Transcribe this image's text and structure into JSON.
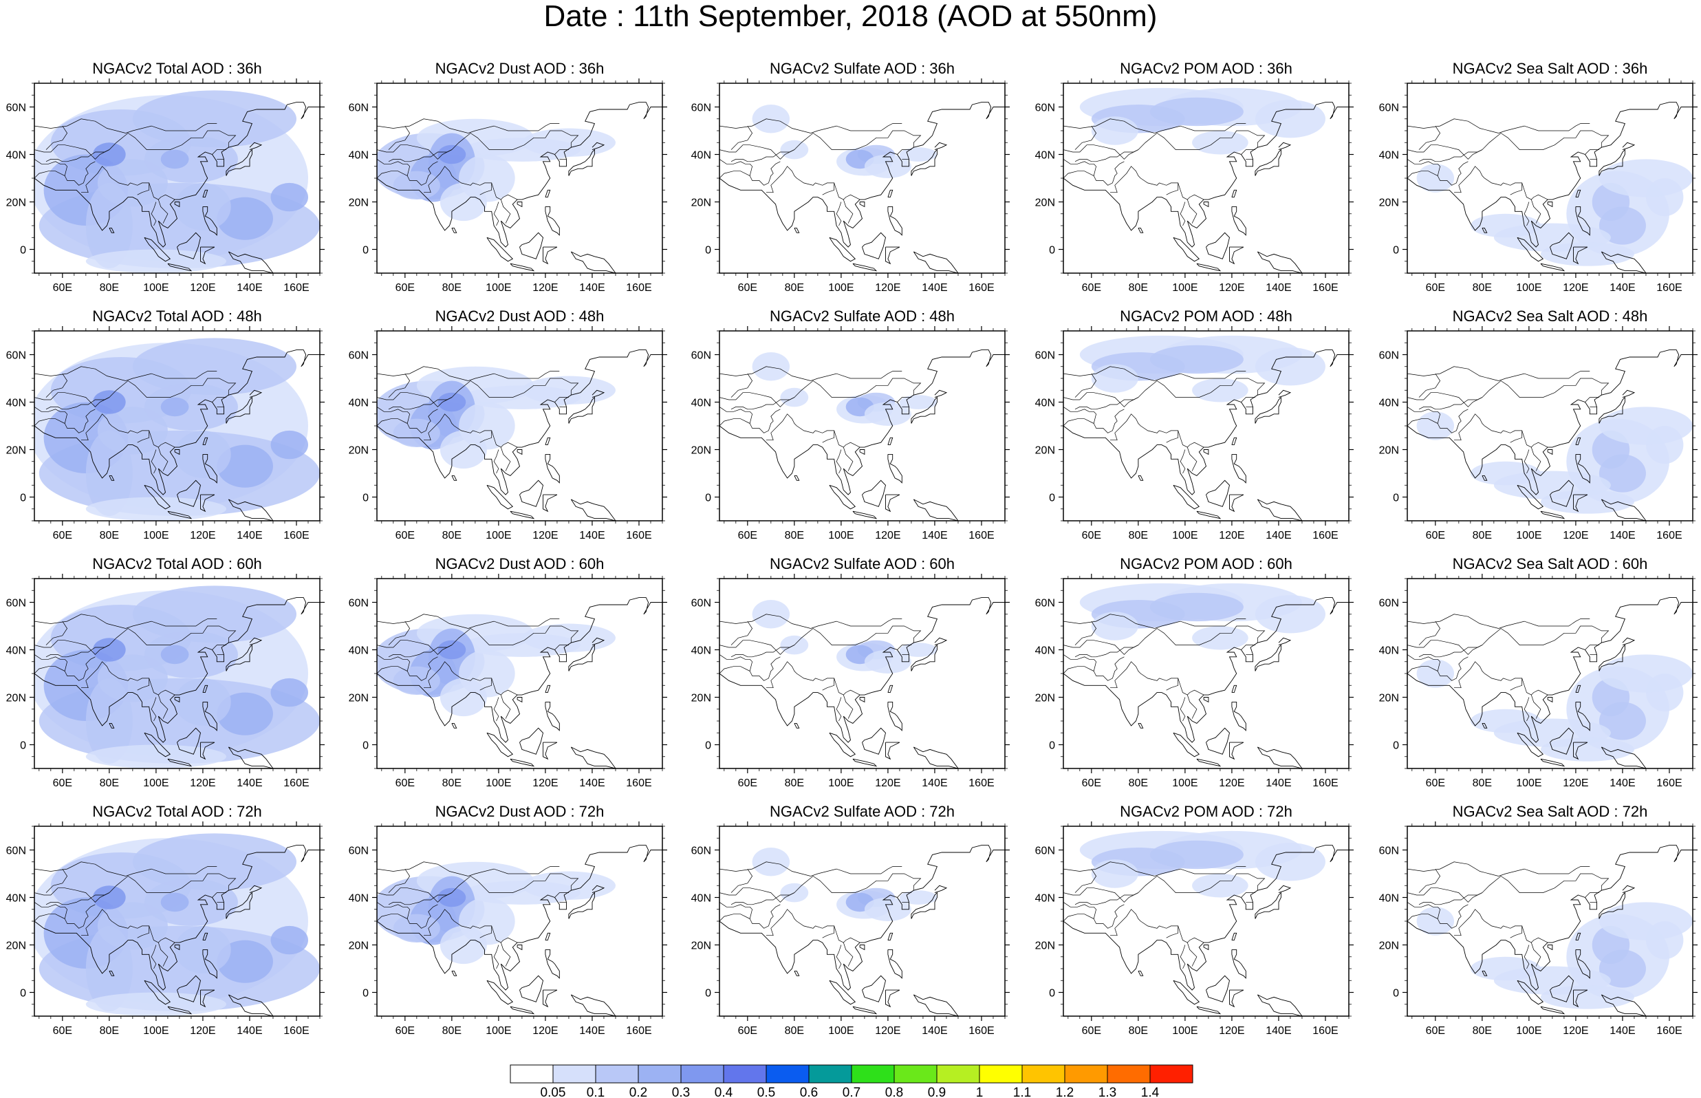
{
  "title": "Date : 11th September, 2018 (AOD at 550nm)",
  "map": {
    "lon_range": [
      48,
      170
    ],
    "lat_range": [
      -10,
      70
    ],
    "lon_ticks": [
      "60E",
      "80E",
      "100E",
      "120E",
      "140E",
      "160E"
    ],
    "lat_ticks": [
      "60N",
      "40N",
      "20N",
      "0"
    ]
  },
  "panels": [
    {
      "title": "NGACv2 Total AOD : 36h",
      "kind": "total"
    },
    {
      "title": "NGACv2 Dust AOD : 36h",
      "kind": "dust"
    },
    {
      "title": "NGACv2 Sulfate AOD : 36h",
      "kind": "sulfate"
    },
    {
      "title": "NGACv2 POM AOD : 36h",
      "kind": "pom"
    },
    {
      "title": "NGACv2 Sea Salt AOD : 36h",
      "kind": "seasalt"
    },
    {
      "title": "NGACv2 Total AOD : 48h",
      "kind": "total"
    },
    {
      "title": "NGACv2 Dust AOD : 48h",
      "kind": "dust"
    },
    {
      "title": "NGACv2 Sulfate AOD : 48h",
      "kind": "sulfate"
    },
    {
      "title": "NGACv2 POM AOD : 48h",
      "kind": "pom"
    },
    {
      "title": "NGACv2 Sea Salt AOD : 48h",
      "kind": "seasalt"
    },
    {
      "title": "NGACv2 Total AOD : 60h",
      "kind": "total"
    },
    {
      "title": "NGACv2 Dust AOD : 60h",
      "kind": "dust"
    },
    {
      "title": "NGACv2 Sulfate AOD : 60h",
      "kind": "sulfate"
    },
    {
      "title": "NGACv2 POM AOD : 60h",
      "kind": "pom"
    },
    {
      "title": "NGACv2 Sea Salt AOD : 60h",
      "kind": "seasalt"
    },
    {
      "title": "NGACv2 Total AOD : 72h",
      "kind": "total"
    },
    {
      "title": "NGACv2 Dust AOD : 72h",
      "kind": "dust"
    },
    {
      "title": "NGACv2 Sulfate AOD : 72h",
      "kind": "sulfate"
    },
    {
      "title": "NGACv2 POM AOD : 72h",
      "kind": "pom"
    },
    {
      "title": "NGACv2 Sea Salt  AOD : 72h",
      "kind": "seasalt"
    }
  ],
  "colorbar": {
    "labels": [
      "0.05",
      "0.1",
      "0.2",
      "0.3",
      "0.4",
      "0.5",
      "0.6",
      "0.7",
      "0.8",
      "0.9",
      "1",
      "1.1",
      "1.2",
      "1.3",
      "1.4"
    ],
    "colors": [
      "#ffffff",
      "#d6e0fb",
      "#b9c8f7",
      "#9cb2f3",
      "#7f98ef",
      "#6276ec",
      "#0a5cf0",
      "#059a9a",
      "#2ee01a",
      "#6ae81a",
      "#b6ef22",
      "#ffff00",
      "#ffc400",
      "#ff9a00",
      "#ff6c00",
      "#ff2000"
    ]
  }
}
